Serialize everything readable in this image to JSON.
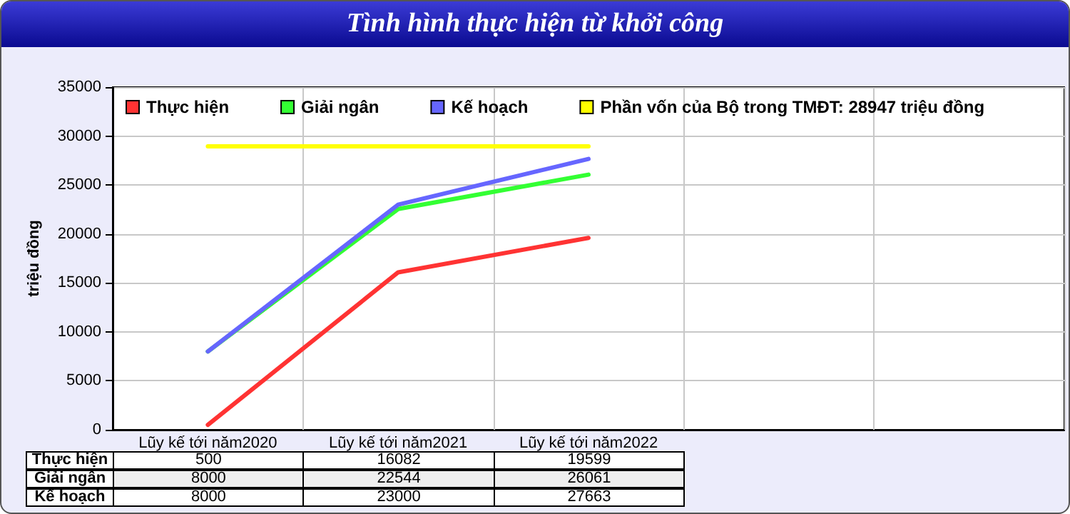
{
  "chart_data": {
    "type": "line",
    "title": "Tình hình thực hiện từ khởi công",
    "ylabel": "triệu đồng",
    "categories": [
      "Lũy kế tới năm2020",
      "Lũy kế tới năm2021",
      "Lũy kế tới năm2022",
      null,
      null
    ],
    "series": [
      {
        "name": "Thực hiện",
        "color": "#ff3333",
        "values": [
          500,
          16082,
          19599,
          null,
          null
        ],
        "value_labels": [
          "500",
          "16082",
          "19599",
          null,
          null
        ]
      },
      {
        "name": "Giải ngân",
        "color": "#33ff33",
        "values": [
          8000,
          22544,
          26061,
          null,
          null
        ],
        "value_labels": [
          "8000",
          "22544",
          "26061",
          null,
          null
        ]
      },
      {
        "name": "Kế hoạch",
        "color": "#6666ff",
        "values": [
          8000,
          23000,
          27663,
          null,
          null
        ],
        "value_labels": [
          "8000",
          "23000",
          "27663",
          null,
          null
        ]
      },
      {
        "name": "Phần vốn của Bộ trong TMĐT: 28947 triệu đồng",
        "color": "#ffff00",
        "values": [
          28947,
          28947,
          28947,
          null,
          null
        ]
      }
    ],
    "ylim": [
      0,
      35000
    ],
    "yticks": [
      0,
      5000,
      10000,
      15000,
      20000,
      25000,
      30000,
      35000
    ],
    "grid": true,
    "legend": "top left",
    "marker": "none",
    "line_style": "solid"
  }
}
